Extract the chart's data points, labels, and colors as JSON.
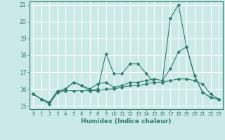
{
  "xlabel": "Humidex (Indice chaleur)",
  "xlim": [
    -0.5,
    23.5
  ],
  "ylim": [
    14.8,
    21.2
  ],
  "yticks": [
    15,
    16,
    17,
    18,
    19,
    20,
    21
  ],
  "xticks": [
    0,
    1,
    2,
    3,
    4,
    5,
    6,
    7,
    8,
    9,
    10,
    11,
    12,
    13,
    14,
    15,
    16,
    17,
    18,
    19,
    20,
    21,
    22,
    23
  ],
  "bg_color": "#cce9e9",
  "grid_color": "#ffffff",
  "line_color": "#2d7d6e",
  "series": [
    [
      15.7,
      15.4,
      15.1,
      15.8,
      16.0,
      16.4,
      16.2,
      15.9,
      16.0,
      18.1,
      16.9,
      16.9,
      17.5,
      17.5,
      16.9,
      16.4,
      16.4,
      20.2,
      21.0,
      18.5,
      16.8,
      15.8,
      15.5,
      15.4
    ],
    [
      15.7,
      15.4,
      15.2,
      15.8,
      15.9,
      15.9,
      15.9,
      15.9,
      15.9,
      16.0,
      16.0,
      16.1,
      16.2,
      16.2,
      16.3,
      16.4,
      16.4,
      16.5,
      16.6,
      16.6,
      16.5,
      16.3,
      15.7,
      15.4
    ],
    [
      15.7,
      15.4,
      15.2,
      15.9,
      16.0,
      16.4,
      16.2,
      16.0,
      16.3,
      16.4,
      16.1,
      16.2,
      16.4,
      16.4,
      16.5,
      16.6,
      16.5,
      17.2,
      18.2,
      18.5,
      16.8,
      15.8,
      15.5,
      15.4
    ]
  ]
}
